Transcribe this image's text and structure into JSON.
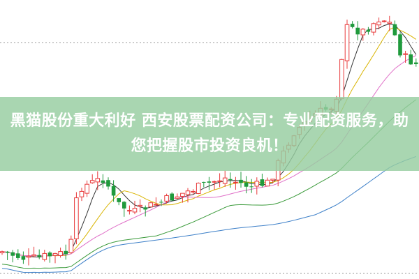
{
  "banner": {
    "title": "黑猫股份重大利好 西安股票配资公司：专业配资服务，助您把握股市投资良机！"
  },
  "colors": {
    "up": "#e8393a",
    "down": "#1f9a3c",
    "banner": "#96cda0",
    "ma_lines": [
      "#333333",
      "#d9b400",
      "#e070c8",
      "#3a9a3a",
      "#3c7fc8"
    ]
  }
}
